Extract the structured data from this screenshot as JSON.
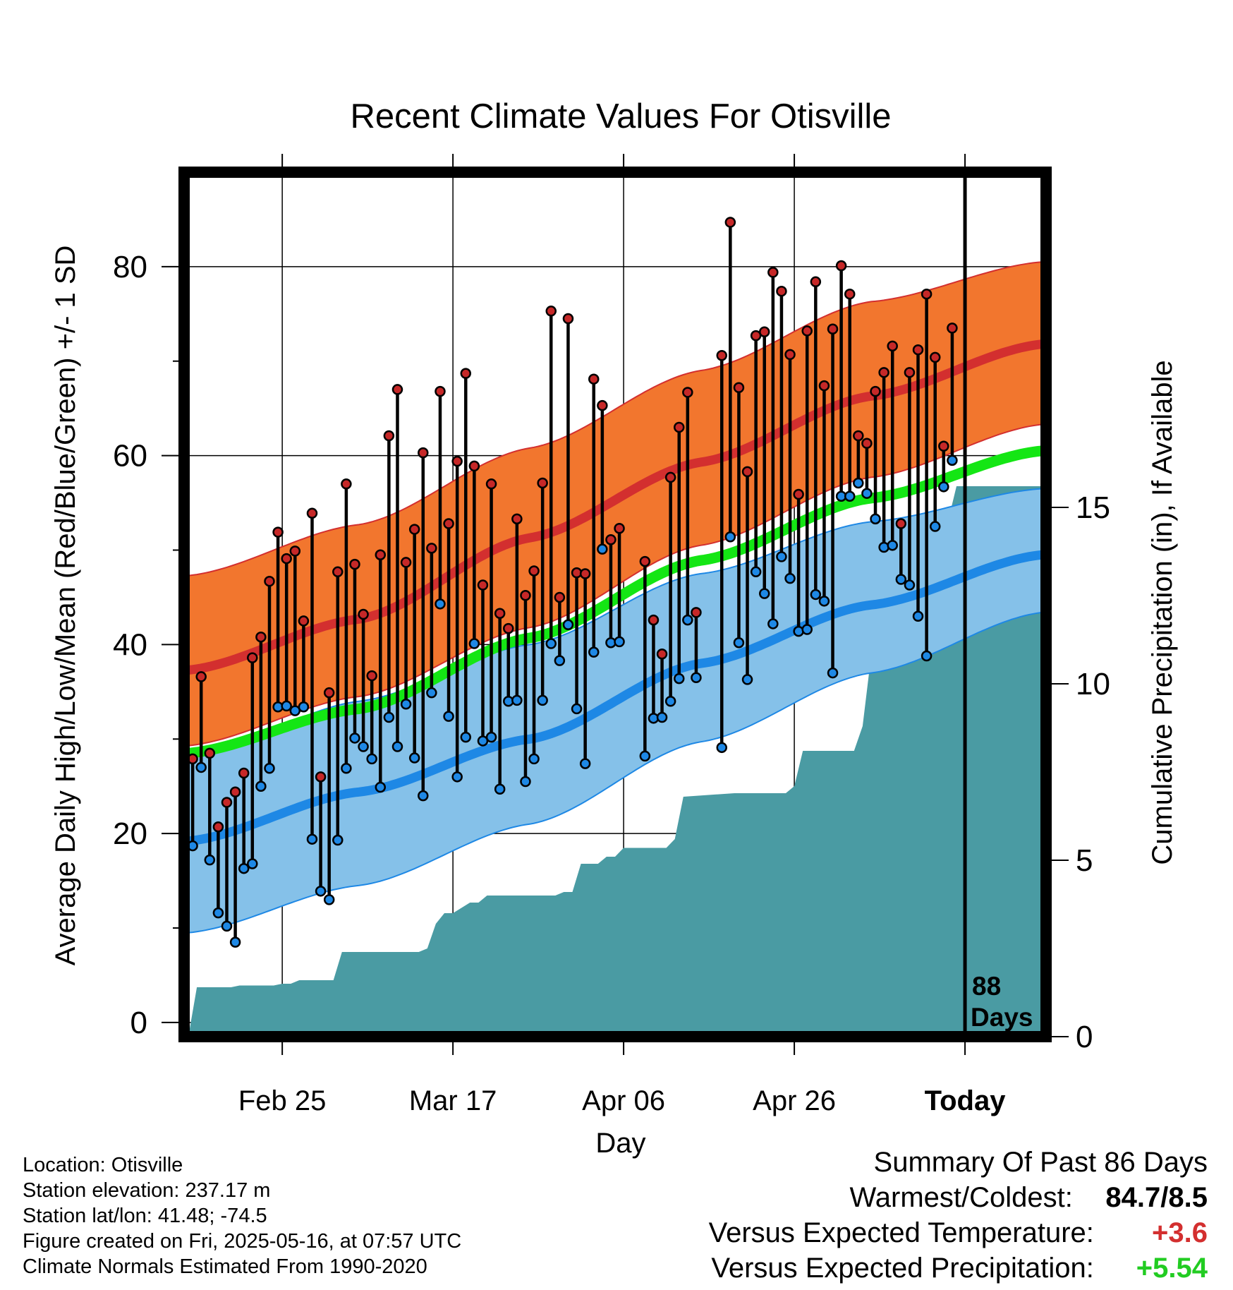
{
  "chart_data": {
    "type": "line",
    "title": "Recent Climate Values For Otisville",
    "xlabel": "Day",
    "ylabel": "Average Daily High/Low/Mean (Red/Blue/Green) +/- 1 SD",
    "y2label": "Cumulative Precipitation (in), If Available",
    "ylim": [
      -1.5,
      90
    ],
    "y2lim": [
      0,
      24.5
    ],
    "yticks": [
      "0",
      "20",
      "40",
      "60",
      "80"
    ],
    "y2ticks": [
      "0",
      "5",
      "10",
      "15"
    ],
    "xlim": [
      -0.5,
      100.5
    ],
    "x_ticks": [
      {
        "x": 11,
        "label": "Feb 25"
      },
      {
        "x": 31,
        "label": "Mar 17"
      },
      {
        "x": 51,
        "label": "Apr 06"
      },
      {
        "x": 71,
        "label": "Apr 26"
      },
      {
        "x": 91,
        "label": "Today"
      }
    ],
    "today_x": 91,
    "today_label": [
      "88",
      "Days"
    ],
    "normals": {
      "high_mean": [
        [
          0,
          37.3
        ],
        [
          20,
          42.7
        ],
        [
          40,
          51.3
        ],
        [
          60,
          59.3
        ],
        [
          80,
          66.3
        ],
        [
          100,
          71.8
        ]
      ],
      "high_upper": [
        [
          0,
          47.3
        ],
        [
          20,
          52.7
        ],
        [
          40,
          60.8
        ],
        [
          60,
          69.0
        ],
        [
          80,
          76.3
        ],
        [
          100,
          80.5
        ]
      ],
      "high_lower": [
        [
          0,
          29.3
        ],
        [
          20,
          34.5
        ],
        [
          40,
          41.8
        ],
        [
          60,
          50.5
        ],
        [
          80,
          57.7
        ],
        [
          100,
          63.3
        ]
      ],
      "mean": [
        [
          0,
          28.5
        ],
        [
          20,
          33.2
        ],
        [
          40,
          40.7
        ],
        [
          60,
          48.9
        ],
        [
          80,
          55.5
        ],
        [
          100,
          60.5
        ]
      ],
      "low_mean": [
        [
          0,
          19.2
        ],
        [
          20,
          24.4
        ],
        [
          40,
          30.0
        ],
        [
          60,
          38.0
        ],
        [
          80,
          44.2
        ],
        [
          100,
          49.5
        ]
      ],
      "low_upper": [
        [
          0,
          28.0
        ],
        [
          20,
          34.0
        ],
        [
          40,
          40.0
        ],
        [
          60,
          47.5
        ],
        [
          80,
          53.0
        ],
        [
          100,
          56.5
        ]
      ],
      "low_lower": [
        [
          0,
          9.5
        ],
        [
          20,
          14.5
        ],
        [
          40,
          21.0
        ],
        [
          60,
          29.7
        ],
        [
          80,
          37.0
        ],
        [
          100,
          43.4
        ]
      ]
    },
    "series": [
      {
        "name": "High",
        "values": [
          27.9,
          36.6,
          28.5,
          20.7,
          23.3,
          24.4,
          26.4,
          38.6,
          40.8,
          46.7,
          51.9,
          49.1,
          49.9,
          42.5,
          53.9,
          26.0,
          34.9,
          47.7,
          57.0,
          48.5,
          43.2,
          36.7,
          49.5,
          62.1,
          67.0,
          48.7,
          52.2,
          60.3,
          50.2,
          66.8,
          52.8,
          59.4,
          68.7,
          58.9,
          46.3,
          57.0,
          43.3,
          41.7,
          53.3,
          45.2,
          47.8,
          57.1,
          75.3,
          45.0,
          74.5,
          47.6,
          47.5,
          68.1,
          65.3,
          51.1,
          52.3,
          null,
          null,
          48.8,
          42.6,
          39.0,
          57.7,
          63.0,
          66.7,
          43.4,
          null,
          null,
          70.6,
          84.7,
          67.2,
          58.3,
          72.7,
          73.1,
          79.4,
          77.4,
          70.7,
          55.9,
          73.2,
          78.4,
          67.4,
          73.4,
          80.1,
          77.1,
          62.1,
          61.3,
          66.8,
          68.8,
          71.6,
          52.8,
          68.8,
          71.2,
          77.1,
          70.4,
          61.0,
          73.5
        ]
      },
      {
        "name": "Low",
        "values": [
          18.7,
          27.0,
          17.2,
          11.6,
          10.2,
          8.5,
          16.3,
          16.8,
          25.0,
          26.9,
          33.4,
          33.5,
          33.0,
          33.4,
          19.4,
          13.9,
          13.0,
          19.3,
          26.9,
          30.1,
          29.2,
          27.9,
          24.9,
          32.3,
          29.2,
          33.7,
          28.0,
          24.0,
          34.9,
          44.3,
          32.4,
          26.0,
          30.2,
          40.1,
          29.8,
          30.2,
          24.7,
          34.0,
          34.1,
          25.5,
          27.9,
          34.1,
          40.1,
          38.3,
          42.1,
          33.2,
          27.4,
          39.2,
          50.1,
          40.2,
          40.3,
          null,
          null,
          28.2,
          32.2,
          32.3,
          34.0,
          36.4,
          42.6,
          36.5,
          null,
          null,
          29.1,
          51.4,
          40.2,
          36.3,
          47.7,
          45.4,
          42.2,
          49.3,
          47.0,
          41.4,
          41.6,
          45.3,
          44.6,
          37.0,
          55.7,
          55.7,
          57.1,
          56.0,
          53.3,
          50.3,
          50.5,
          46.9,
          46.3,
          43.0,
          38.8,
          52.5,
          56.7,
          59.5
        ]
      },
      {
        "name": "Cumulative Precipitation",
        "values": [
          [
            0,
            0.0
          ],
          [
            1,
            1.4
          ],
          [
            5,
            1.4
          ],
          [
            6,
            1.45
          ],
          [
            10,
            1.45
          ],
          [
            11,
            1.5
          ],
          [
            12,
            1.5
          ],
          [
            13,
            1.6
          ],
          [
            17,
            1.6
          ],
          [
            18,
            2.4
          ],
          [
            27,
            2.4
          ],
          [
            28,
            2.5
          ],
          [
            29,
            3.2
          ],
          [
            30,
            3.5
          ],
          [
            31,
            3.5
          ],
          [
            33,
            3.8
          ],
          [
            34,
            3.8
          ],
          [
            35,
            4.0
          ],
          [
            43,
            4.0
          ],
          [
            44,
            4.1
          ],
          [
            45,
            4.1
          ],
          [
            46,
            4.9
          ],
          [
            48,
            4.9
          ],
          [
            49,
            5.1
          ],
          [
            50,
            5.1
          ],
          [
            51,
            5.35
          ],
          [
            56,
            5.35
          ],
          [
            57,
            5.6
          ],
          [
            58,
            6.8
          ],
          [
            64,
            6.9
          ],
          [
            70,
            6.9
          ],
          [
            71,
            7.1
          ],
          [
            72,
            8.1
          ],
          [
            78,
            8.1
          ],
          [
            79,
            8.8
          ],
          [
            80,
            10.8
          ],
          [
            81,
            12.2
          ],
          [
            82,
            12.6
          ],
          [
            83,
            12.6
          ],
          [
            84,
            13.2
          ],
          [
            85,
            14.3
          ],
          [
            88,
            14.3
          ],
          [
            89,
            14.6
          ],
          [
            90,
            15.6
          ],
          [
            100,
            15.6
          ]
        ]
      }
    ]
  },
  "footer": {
    "location": "Location: Otisville",
    "elevation": "Station elevation: 237.17 m",
    "latlon": "Station lat/lon: 41.48; -74.5",
    "created": "Figure created on Fri, 2025-05-16, at 07:57 UTC",
    "normals": "Climate Normals Estimated From 1990-2020"
  },
  "summary": {
    "title": "Summary Of Past 86 Days",
    "warm_label": "Warmest/Coldest:",
    "warm_value": "84.7/8.5",
    "temp_label": "Versus Expected Temperature:",
    "temp_value": "+3.6",
    "precip_label": "Versus Expected Precipitation:",
    "precip_value": "+5.54"
  },
  "colors": {
    "high_band": "#F2762E",
    "high_line": "#D32F2F",
    "low_band": "#85C1E9",
    "low_line": "#1E88E5",
    "mean_line": "#14E614",
    "precip": "#4A9BA3",
    "high_dot": "#C62828",
    "low_dot": "#1E88E5",
    "temp_value": "#D32F2F",
    "precip_value": "#22CC22"
  }
}
